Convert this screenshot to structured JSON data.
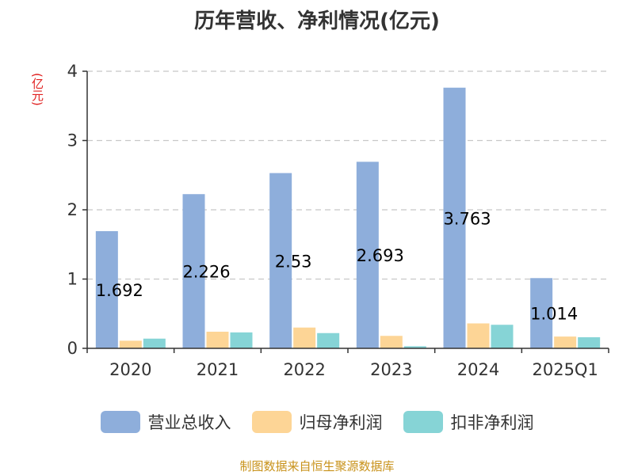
{
  "chart_data": {
    "type": "bar",
    "title": "历年营收、净利情况(亿元)",
    "unit_label": "(亿元)",
    "categories": [
      "2020",
      "2021",
      "2022",
      "2023",
      "2024",
      "2025Q1"
    ],
    "series": [
      {
        "name": "营业总收入",
        "color": "#8eaedb",
        "values": [
          1.692,
          2.226,
          2.53,
          2.693,
          3.763,
          1.014
        ]
      },
      {
        "name": "归母净利润",
        "color": "#fdd596",
        "values": [
          0.11,
          0.24,
          0.3,
          0.18,
          0.36,
          0.17
        ]
      },
      {
        "name": "扣非净利润",
        "color": "#86d4d6",
        "values": [
          0.14,
          0.23,
          0.22,
          0.03,
          0.34,
          0.16
        ]
      }
    ],
    "data_labels": [
      "1.692",
      "2.226",
      "2.53",
      "2.693",
      "3.763",
      "1.014"
    ],
    "y_ticks": [
      "0",
      "1",
      "2",
      "3",
      "4"
    ],
    "ylim": [
      0,
      4
    ],
    "grid": true,
    "legend_position": "bottom"
  },
  "source": "制图数据来自恒生聚源数据库"
}
